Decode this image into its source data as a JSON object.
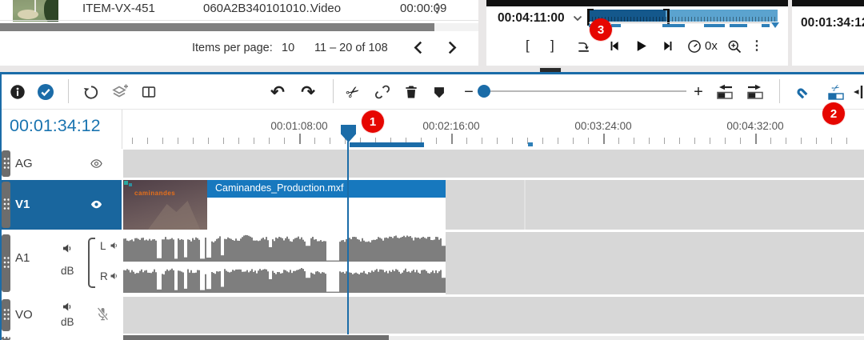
{
  "colors": {
    "accent": "#1b6ca8",
    "selected_track": "#19669e",
    "clip_bar": "#1778be",
    "badge_red": "#e60600",
    "timecode_blue": "#1a74b0",
    "waveform_gray": "#7e7e7e",
    "lane_gray": "#d7d7d7"
  },
  "icons": {
    "dots": "⋮",
    "undo": "↶",
    "redo": "↷",
    "scissors": "✂"
  },
  "media_browser": {
    "row": {
      "id": "ITEM-VX-451",
      "umid": "060A2B340101010...",
      "type": "Video",
      "duration": "00:00:09"
    },
    "paginator": {
      "items_per_page_label": "Items per page:",
      "items_per_page_value": "10",
      "range": "11 – 20 of 108"
    }
  },
  "player": {
    "timecode": "00:04:11:00",
    "in_bracket": "[",
    "out_bracket": "]",
    "speed": "0x"
  },
  "program_monitor": {
    "timecode": "00:01:34:12"
  },
  "timeline": {
    "playhead_timecode": "00:01:34:12",
    "zoom_out": "−",
    "zoom_in": "+",
    "ruler_labels": [
      "00:01:08:00",
      "00:02:16:00",
      "00:03:24:00",
      "00:04:32:00"
    ],
    "clip": {
      "name": "Caminandes_Production.mxf",
      "thumb_label": "caminandes"
    },
    "tracks": [
      {
        "id": "AG"
      },
      {
        "id": "V1"
      },
      {
        "id": "A1",
        "gain": "dB",
        "left": "L",
        "right": "R"
      },
      {
        "id": "VO",
        "gain": "dB"
      }
    ]
  },
  "annotations": {
    "badge_1": "1",
    "badge_2": "2",
    "badge_3": "3"
  }
}
